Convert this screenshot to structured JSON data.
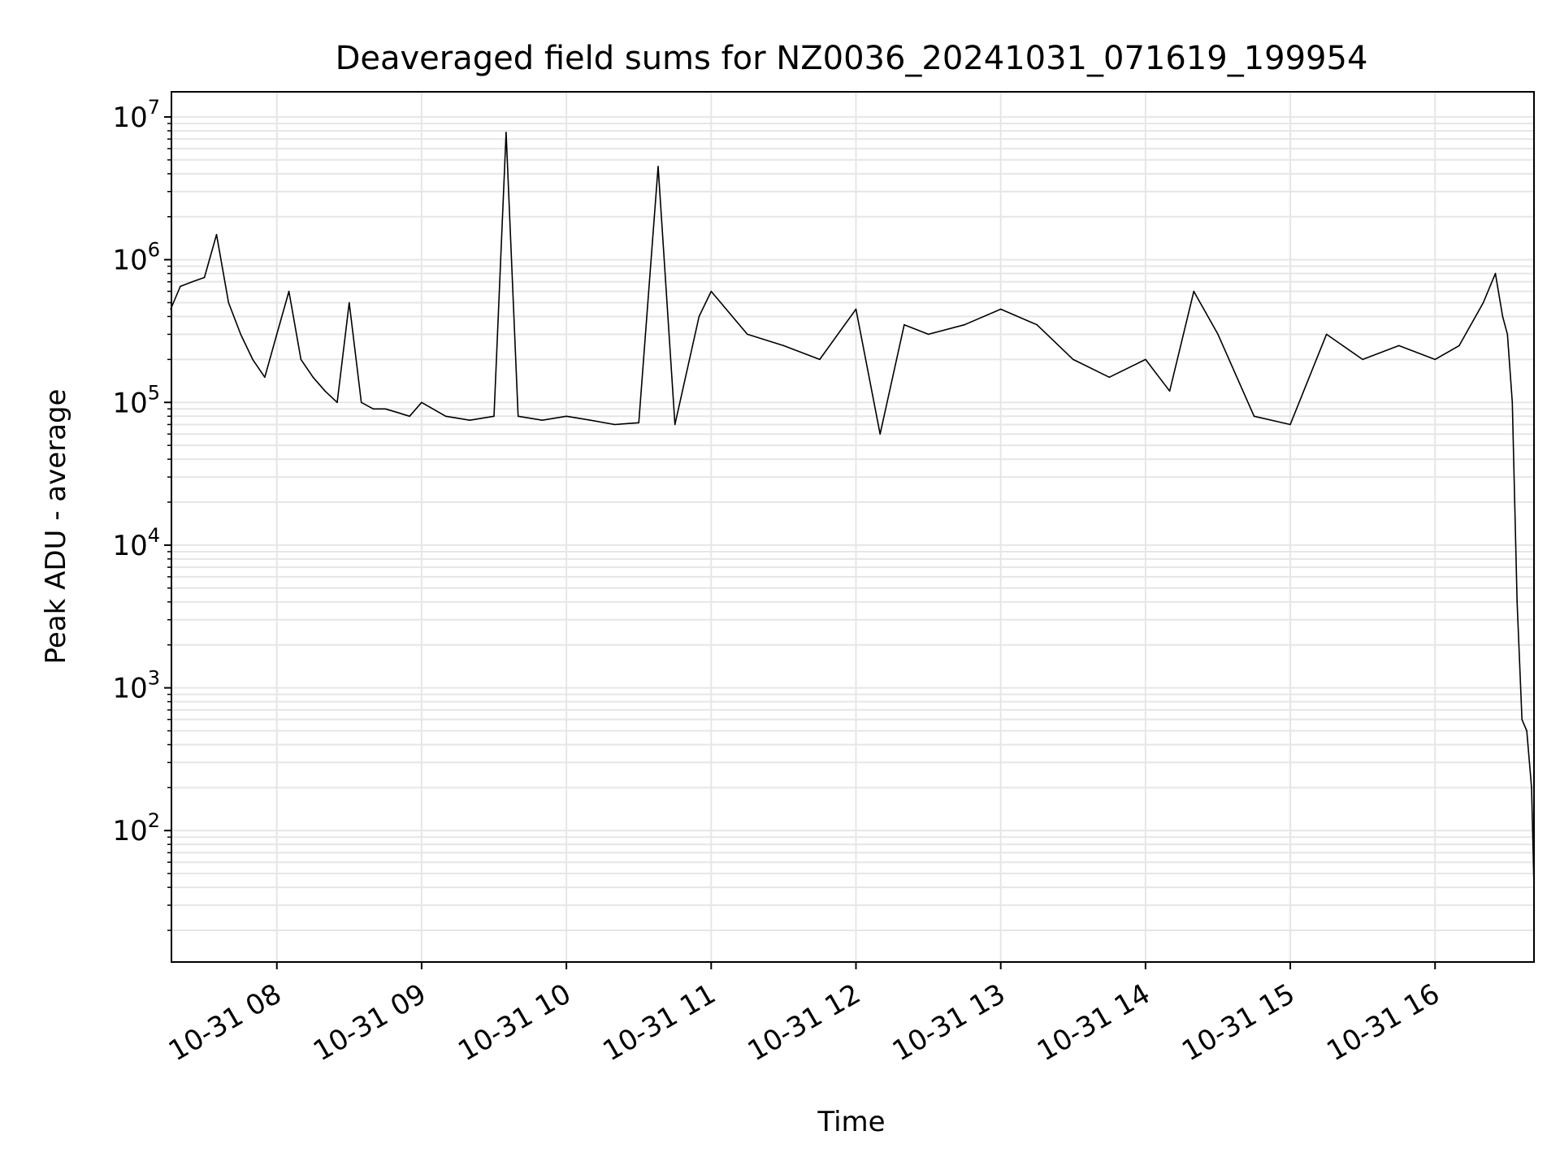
{
  "chart_data": {
    "type": "line",
    "title": "Deaveraged field sums for NZ0036_20241031_071619_199954",
    "xlabel": "Time",
    "ylabel": "Peak ADU - average",
    "y_scale": "log",
    "ylim": [
      12,
      15000000
    ],
    "xlim": [
      "2024-10-31T07:16:19",
      "2024-10-31T16:41:00"
    ],
    "x_ticks": [
      {
        "time": "2024-10-31T08:00",
        "label": "10-31 08"
      },
      {
        "time": "2024-10-31T09:00",
        "label": "10-31 09"
      },
      {
        "time": "2024-10-31T10:00",
        "label": "10-31 10"
      },
      {
        "time": "2024-10-31T11:00",
        "label": "10-31 11"
      },
      {
        "time": "2024-10-31T12:00",
        "label": "10-31 12"
      },
      {
        "time": "2024-10-31T13:00",
        "label": "10-31 13"
      },
      {
        "time": "2024-10-31T14:00",
        "label": "10-31 14"
      },
      {
        "time": "2024-10-31T15:00",
        "label": "10-31 15"
      },
      {
        "time": "2024-10-31T16:00",
        "label": "10-31 16"
      }
    ],
    "y_ticks": [
      {
        "value": 100,
        "base": "10",
        "exp": "2"
      },
      {
        "value": 1000,
        "base": "10",
        "exp": "3"
      },
      {
        "value": 10000,
        "base": "10",
        "exp": "4"
      },
      {
        "value": 100000,
        "base": "10",
        "exp": "5"
      },
      {
        "value": 1000000,
        "base": "10",
        "exp": "6"
      },
      {
        "value": 10000000,
        "base": "10",
        "exp": "7"
      }
    ],
    "grid": true,
    "legend": "none",
    "line_color": "#000000",
    "grid_color": "#e6e6e6",
    "series": [
      {
        "x": [
          "07:16",
          "07:20",
          "07:25",
          "07:30",
          "07:35",
          "07:40",
          "07:45",
          "07:50",
          "07:55",
          "08:00",
          "08:05",
          "08:10",
          "08:15",
          "08:20",
          "08:25",
          "08:30",
          "08:35",
          "08:40",
          "08:45",
          "08:50",
          "08:55",
          "09:00",
          "09:10",
          "09:20",
          "09:30",
          "09:35",
          "09:40",
          "09:50",
          "10:00",
          "10:10",
          "10:20",
          "10:30",
          "10:38",
          "10:45",
          "10:55",
          "11:00",
          "11:15",
          "11:30",
          "11:45",
          "12:00",
          "12:10",
          "12:20",
          "12:30",
          "12:45",
          "13:00",
          "13:15",
          "13:30",
          "13:45",
          "14:00",
          "14:10",
          "14:20",
          "14:30",
          "14:45",
          "15:00",
          "15:15",
          "15:30",
          "15:45",
          "16:00",
          "16:10",
          "16:20",
          "16:25",
          "16:28",
          "16:30",
          "16:32",
          "16:34",
          "16:36",
          "16:38",
          "16:40",
          "16:41"
        ],
        "values": [
          450000,
          650000,
          700000,
          750000,
          1500000,
          500000,
          300000,
          200000,
          150000,
          300000,
          600000,
          200000,
          150000,
          120000,
          100000,
          500000,
          100000,
          90000,
          90000,
          85000,
          80000,
          100000,
          80000,
          75000,
          80000,
          7800000,
          80000,
          75000,
          80000,
          75000,
          70000,
          72000,
          4500000,
          70000,
          400000,
          600000,
          300000,
          250000,
          200000,
          450000,
          60000,
          350000,
          300000,
          350000,
          450000,
          350000,
          200000,
          150000,
          200000,
          120000,
          600000,
          300000,
          80000,
          70000,
          300000,
          200000,
          250000,
          200000,
          250000,
          500000,
          800000,
          400000,
          300000,
          100000,
          4000,
          600,
          500,
          200,
          40
        ]
      }
    ]
  }
}
